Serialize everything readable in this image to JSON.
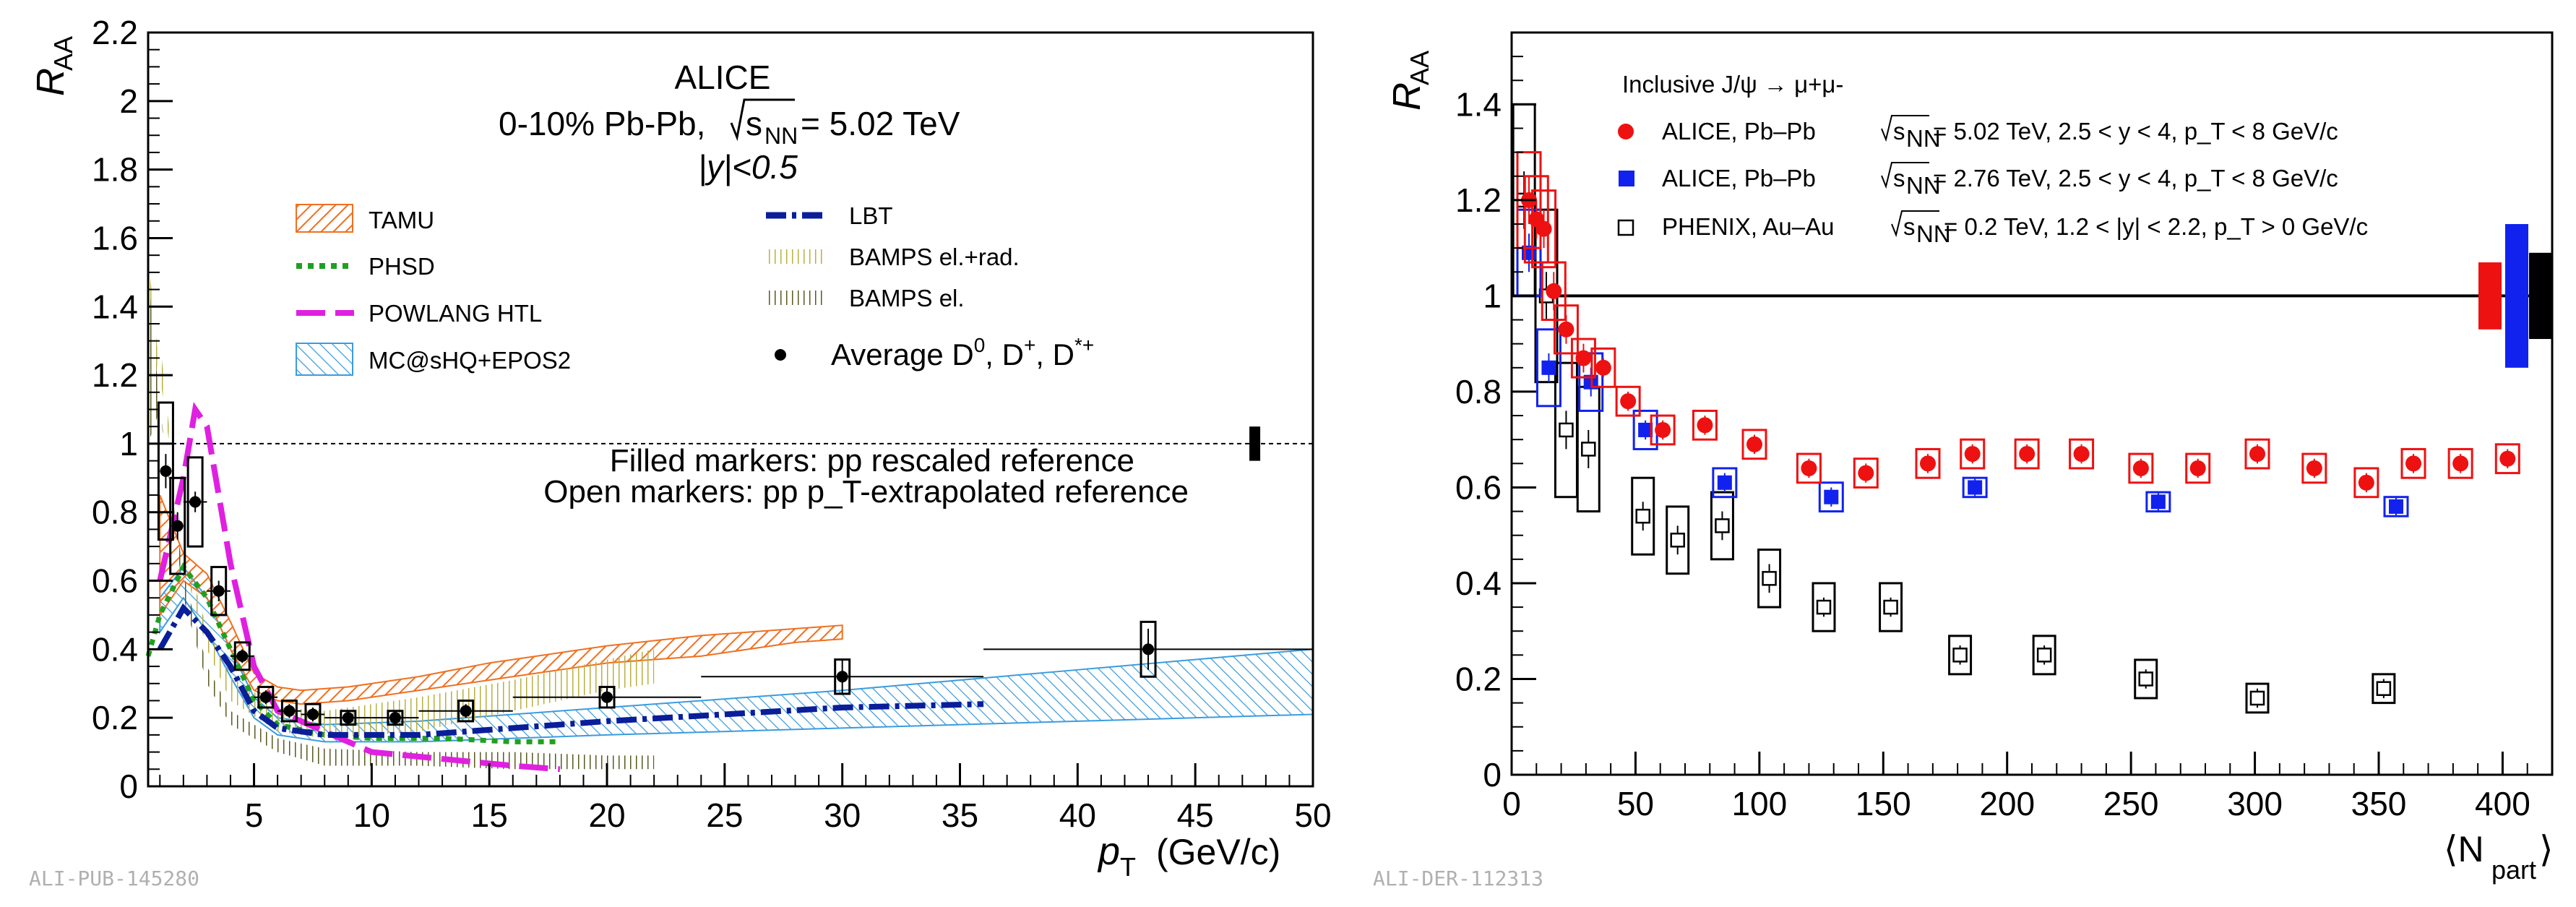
{
  "chart_data": [
    {
      "type": "scatter",
      "title": "ALICE",
      "subtitle_system": "0-10% Pb-Pb,",
      "subtitle_energy": "= 5.02 TeV",
      "subtitle_sqrt_label": "s",
      "subtitle_sqrt_sub": "NN",
      "subtitle_rapidity": "|y|<0.5",
      "xlabel": "p",
      "xlabel_sub": "T",
      "xlabel_units": "(GeV/c)",
      "ylabel": "R",
      "ylabel_sub": "AA",
      "xlim": [
        0.5,
        50
      ],
      "ylim": [
        0,
        2.2
      ],
      "x_ticks": [
        5,
        10,
        15,
        20,
        25,
        30,
        35,
        40,
        45,
        50
      ],
      "y_ticks": [
        0,
        0.2,
        0.4,
        0.6,
        0.8,
        1,
        1.2,
        1.4,
        1.6,
        1.8,
        2,
        2.2
      ],
      "reference_line": 1,
      "note_filled": "Filled markers: pp rescaled reference",
      "note_open": "Open markers: pp p_T-extrapolated reference",
      "normalization_uncertainty": 0.05,
      "legend": [
        {
          "key": "tamu",
          "label": "TAMU",
          "color": "#f07020"
        },
        {
          "key": "phsd",
          "label": "PHSD",
          "color": "#20a020"
        },
        {
          "key": "powlang",
          "label": "POWLANG HTL",
          "color": "#e020e0"
        },
        {
          "key": "mcsqh",
          "label": "MC@sHQ+EPOS2",
          "color": "#3a9ce0"
        },
        {
          "key": "lbt",
          "label": "LBT",
          "color": "#0a1e9a"
        },
        {
          "key": "bamps_rad",
          "label": "BAMPS el.+rad.",
          "color": "#b8b040"
        },
        {
          "key": "bamps_el",
          "label": "BAMPS el.",
          "color": "#5a5a20"
        },
        {
          "key": "data",
          "label": "Average D^0, D^+, D^*+"
        }
      ],
      "data_points": [
        {
          "x": 1.25,
          "y": 0.92,
          "xerr": 0.25,
          "stat": 0.05,
          "syst": 0.2
        },
        {
          "x": 1.75,
          "y": 0.76,
          "xerr": 0.25,
          "stat": 0.04,
          "syst": 0.14
        },
        {
          "x": 2.5,
          "y": 0.83,
          "xerr": 0.5,
          "stat": 0.03,
          "syst": 0.13
        },
        {
          "x": 3.5,
          "y": 0.57,
          "xerr": 0.5,
          "stat": 0.03,
          "syst": 0.07
        },
        {
          "x": 4.5,
          "y": 0.38,
          "xerr": 0.5,
          "stat": 0.02,
          "syst": 0.04
        },
        {
          "x": 5.5,
          "y": 0.26,
          "xerr": 0.5,
          "stat": 0.02,
          "syst": 0.03
        },
        {
          "x": 6.5,
          "y": 0.22,
          "xerr": 0.5,
          "stat": 0.02,
          "syst": 0.03
        },
        {
          "x": 7.5,
          "y": 0.21,
          "xerr": 0.5,
          "stat": 0.02,
          "syst": 0.03
        },
        {
          "x": 9,
          "y": 0.2,
          "xerr": 1,
          "stat": 0.02,
          "syst": 0.02
        },
        {
          "x": 11,
          "y": 0.2,
          "xerr": 1,
          "stat": 0.02,
          "syst": 0.02
        },
        {
          "x": 14,
          "y": 0.22,
          "xerr": 2,
          "stat": 0.02,
          "syst": 0.03
        },
        {
          "x": 20,
          "y": 0.26,
          "xerr": 4,
          "stat": 0.03,
          "syst": 0.03
        },
        {
          "x": 30,
          "y": 0.32,
          "xerr": 6,
          "stat": 0.05,
          "syst": 0.05
        },
        {
          "x": 43,
          "y": 0.4,
          "xerr": 7,
          "stat": 0.06,
          "syst": 0.08
        }
      ],
      "models": {
        "tamu_low": [
          [
            1,
            0.5
          ],
          [
            2,
            0.6
          ],
          [
            3,
            0.55
          ],
          [
            4,
            0.4
          ],
          [
            5,
            0.28
          ],
          [
            6,
            0.25
          ],
          [
            7,
            0.24
          ],
          [
            9,
            0.25
          ],
          [
            12,
            0.28
          ],
          [
            15,
            0.31
          ],
          [
            18,
            0.34
          ],
          [
            20,
            0.36
          ],
          [
            24,
            0.38
          ],
          [
            28,
            0.42
          ],
          [
            30,
            0.43
          ]
        ],
        "tamu_high": [
          [
            1,
            0.85
          ],
          [
            2,
            0.68
          ],
          [
            3,
            0.62
          ],
          [
            4,
            0.48
          ],
          [
            5,
            0.33
          ],
          [
            6,
            0.29
          ],
          [
            7,
            0.28
          ],
          [
            9,
            0.29
          ],
          [
            12,
            0.32
          ],
          [
            15,
            0.36
          ],
          [
            18,
            0.39
          ],
          [
            20,
            0.41
          ],
          [
            24,
            0.44
          ],
          [
            28,
            0.46
          ],
          [
            30,
            0.47
          ]
        ],
        "mcsqh_low": [
          [
            1,
            0.45
          ],
          [
            2,
            0.55
          ],
          [
            3,
            0.45
          ],
          [
            4,
            0.32
          ],
          [
            5,
            0.2
          ],
          [
            6,
            0.15
          ],
          [
            8,
            0.13
          ],
          [
            12,
            0.13
          ],
          [
            16,
            0.14
          ],
          [
            20,
            0.15
          ],
          [
            30,
            0.17
          ],
          [
            40,
            0.19
          ],
          [
            50,
            0.21
          ]
        ],
        "mcsqh_high": [
          [
            1,
            0.55
          ],
          [
            2,
            0.64
          ],
          [
            3,
            0.55
          ],
          [
            4,
            0.4
          ],
          [
            5,
            0.26
          ],
          [
            6,
            0.2
          ],
          [
            8,
            0.18
          ],
          [
            12,
            0.19
          ],
          [
            16,
            0.21
          ],
          [
            20,
            0.23
          ],
          [
            30,
            0.28
          ],
          [
            40,
            0.34
          ],
          [
            50,
            0.4
          ]
        ],
        "lbt": [
          [
            1,
            0.4
          ],
          [
            2,
            0.52
          ],
          [
            3,
            0.45
          ],
          [
            4,
            0.35
          ],
          [
            5,
            0.22
          ],
          [
            6,
            0.17
          ],
          [
            8,
            0.15
          ],
          [
            12,
            0.15
          ],
          [
            16,
            0.17
          ],
          [
            20,
            0.19
          ],
          [
            25,
            0.21
          ],
          [
            30,
            0.23
          ],
          [
            36,
            0.24
          ]
        ],
        "phsd": [
          [
            0.5,
            0.38
          ],
          [
            1,
            0.5
          ],
          [
            2,
            0.64
          ],
          [
            3,
            0.55
          ],
          [
            4,
            0.4
          ],
          [
            5,
            0.25
          ],
          [
            6,
            0.18
          ],
          [
            8,
            0.15
          ],
          [
            10,
            0.14
          ],
          [
            13,
            0.14
          ],
          [
            16,
            0.13
          ],
          [
            18,
            0.13
          ]
        ],
        "powlang": [
          [
            1,
            0.6
          ],
          [
            2,
            0.9
          ],
          [
            2.5,
            1.1
          ],
          [
            3,
            1.05
          ],
          [
            4,
            0.65
          ],
          [
            5,
            0.35
          ],
          [
            6,
            0.22
          ],
          [
            8,
            0.16
          ],
          [
            10,
            0.1
          ],
          [
            13,
            0.08
          ],
          [
            16,
            0.06
          ],
          [
            18,
            0.05
          ]
        ],
        "bamps_rad_low": [
          [
            0.5,
            1.0
          ],
          [
            1,
            1.3
          ],
          [
            2,
            0.65
          ],
          [
            3,
            0.4
          ],
          [
            4,
            0.25
          ],
          [
            6,
            0.16
          ],
          [
            8,
            0.14
          ],
          [
            12,
            0.16
          ],
          [
            16,
            0.22
          ],
          [
            20,
            0.28
          ],
          [
            22,
            0.3
          ]
        ],
        "bamps_rad_high": [
          [
            0.5,
            1.55
          ],
          [
            1,
            1.2
          ],
          [
            2,
            0.7
          ],
          [
            3,
            0.46
          ],
          [
            4,
            0.32
          ],
          [
            6,
            0.23
          ],
          [
            8,
            0.22
          ],
          [
            12,
            0.26
          ],
          [
            16,
            0.31
          ],
          [
            20,
            0.37
          ],
          [
            22,
            0.4
          ]
        ],
        "bamps_el_low": [
          [
            0.5,
            1.0
          ],
          [
            1,
            1.1
          ],
          [
            2,
            0.55
          ],
          [
            3,
            0.3
          ],
          [
            4,
            0.18
          ],
          [
            6,
            0.1
          ],
          [
            8,
            0.06
          ],
          [
            12,
            0.06
          ],
          [
            16,
            0.05
          ],
          [
            20,
            0.05
          ],
          [
            22,
            0.05
          ]
        ],
        "bamps_el_high": [
          [
            0.5,
            1.5
          ],
          [
            1,
            1.1
          ],
          [
            2,
            0.62
          ],
          [
            3,
            0.35
          ],
          [
            4,
            0.22
          ],
          [
            6,
            0.14
          ],
          [
            8,
            0.11
          ],
          [
            12,
            0.1
          ],
          [
            16,
            0.1
          ],
          [
            20,
            0.09
          ],
          [
            22,
            0.09
          ]
        ]
      }
    },
    {
      "type": "scatter",
      "title": "Inclusive J/ψ → μ+μ-",
      "xlabel": "⟨N",
      "xlabel_sub": "part",
      "xlabel_end": "⟩",
      "ylabel": "R",
      "ylabel_sub": "AA",
      "xlim": [
        0,
        420
      ],
      "ylim": [
        0,
        1.55
      ],
      "x_ticks": [
        0,
        50,
        100,
        150,
        200,
        250,
        300,
        350,
        400
      ],
      "y_ticks": [
        0,
        0.2,
        0.4,
        0.6,
        0.8,
        1,
        1.2,
        1.4
      ],
      "reference_line": 1,
      "legend": [
        {
          "key": "alice502",
          "label_pre": "ALICE, Pb–Pb",
          "label_post": "= 5.02 TeV, 2.5 < y < 4, p_T < 8 GeV/c",
          "color": "#ee1111"
        },
        {
          "key": "alice276",
          "label_pre": "ALICE, Pb–Pb",
          "label_post": "= 2.76 TeV, 2.5 < y < 4, p_T < 8 GeV/c",
          "color": "#1122ee"
        },
        {
          "key": "phenix",
          "label_pre": "PHENIX, Au–Au",
          "label_post": "= 0.2 TeV, 1.2 < |y| < 2.2, p_T > 0 GeV/c",
          "color": "#000000"
        }
      ],
      "sqrt_label": "s",
      "sqrt_sub": "NN",
      "global_uncertainties": [
        {
          "key": "alice502",
          "half": 0.07
        },
        {
          "key": "alice276",
          "half": 0.15
        },
        {
          "key": "phenix",
          "half": 0.09
        }
      ],
      "series": [
        {
          "name": "ALICE Pb-Pb 5.02 TeV",
          "key": "alice502",
          "color": "#ee1111",
          "marker": "circle",
          "x": [
            7,
            10,
            13,
            17,
            22,
            29,
            37,
            47,
            61,
            78,
            98,
            120,
            143,
            168,
            186,
            208,
            230,
            254,
            277,
            301,
            324,
            345,
            364,
            383,
            402
          ],
          "y": [
            1.2,
            1.16,
            1.14,
            1.01,
            0.93,
            0.87,
            0.85,
            0.78,
            0.72,
            0.73,
            0.69,
            0.64,
            0.63,
            0.65,
            0.67,
            0.67,
            0.67,
            0.64,
            0.64,
            0.67,
            0.64,
            0.61,
            0.65,
            0.65,
            0.66
          ],
          "stat": [
            0.05,
            0.04,
            0.04,
            0.04,
            0.03,
            0.03,
            0.02,
            0.02,
            0.02,
            0.02,
            0.02,
            0.02,
            0.02,
            0.02,
            0.02,
            0.02,
            0.02,
            0.02,
            0.02,
            0.02,
            0.02,
            0.02,
            0.02,
            0.02,
            0.02
          ],
          "syst": [
            0.1,
            0.09,
            0.08,
            0.06,
            0.05,
            0.04,
            0.04,
            0.03,
            0.03,
            0.03,
            0.03,
            0.03,
            0.03,
            0.03,
            0.03,
            0.03,
            0.03,
            0.03,
            0.03,
            0.03,
            0.03,
            0.03,
            0.03,
            0.03,
            0.03
          ]
        },
        {
          "name": "ALICE Pb-Pb 2.76 TeV",
          "key": "alice276",
          "color": "#1122ee",
          "marker": "square",
          "x": [
            7,
            15,
            32,
            54,
            86,
            129,
            187,
            261,
            357
          ],
          "y": [
            1.09,
            0.85,
            0.82,
            0.72,
            0.61,
            0.58,
            0.6,
            0.57,
            0.56
          ],
          "stat": [
            0.04,
            0.03,
            0.03,
            0.02,
            0.02,
            0.02,
            0.02,
            0.02,
            0.02
          ],
          "syst": [
            0.09,
            0.08,
            0.06,
            0.04,
            0.03,
            0.03,
            0.02,
            0.02,
            0.02
          ]
        },
        {
          "name": "PHENIX Au-Au 0.2 TeV",
          "key": "phenix",
          "color": "#000000",
          "marker": "open-square",
          "x": [
            5,
            14,
            22,
            31,
            53,
            67,
            85,
            104,
            126,
            153,
            181,
            215,
            256,
            301,
            352
          ],
          "y": [
            1.2,
            1.0,
            0.72,
            0.68,
            0.54,
            0.49,
            0.52,
            0.41,
            0.35,
            0.35,
            0.25,
            0.25,
            0.2,
            0.16,
            0.18
          ],
          "stat": [
            0.06,
            0.05,
            0.04,
            0.04,
            0.03,
            0.03,
            0.03,
            0.03,
            0.02,
            0.02,
            0.02,
            0.02,
            0.02,
            0.02,
            0.02
          ],
          "syst": [
            0.2,
            0.18,
            0.14,
            0.13,
            0.08,
            0.07,
            0.07,
            0.06,
            0.05,
            0.05,
            0.04,
            0.04,
            0.04,
            0.03,
            0.03
          ]
        }
      ]
    }
  ],
  "footer": {
    "left_id": "ALI-PUB-145280",
    "right_id": "ALI-DER-112313"
  }
}
